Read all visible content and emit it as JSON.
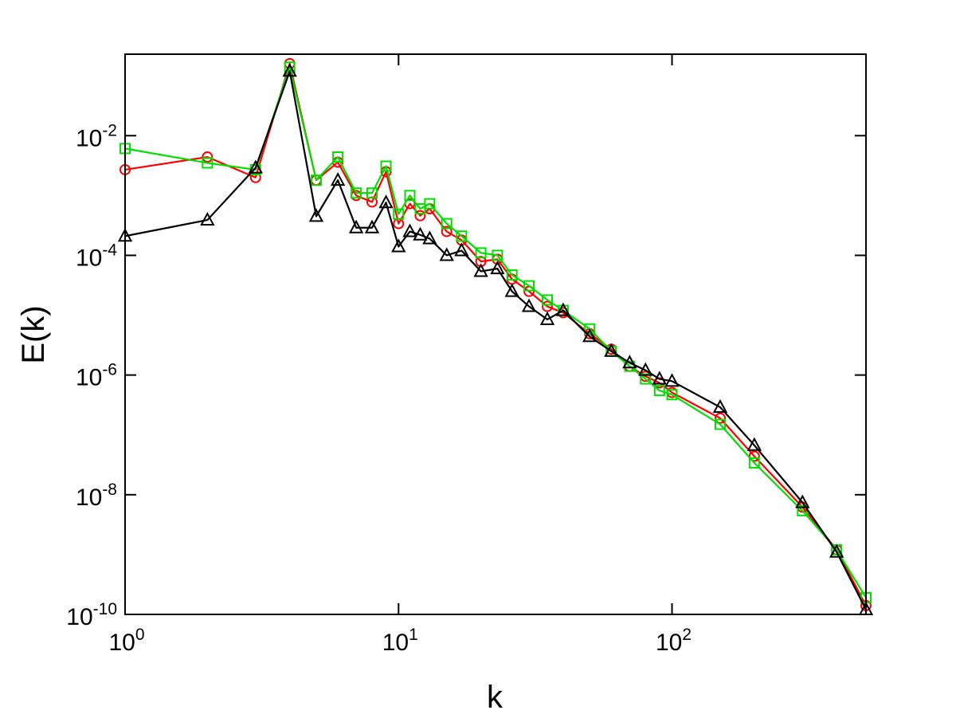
{
  "chart_data": {
    "type": "line",
    "xlabel": "k",
    "ylabel": "E(k)",
    "xscale": "log",
    "yscale": "log",
    "xlim": [
      1,
      512
    ],
    "ylim": [
      1e-10,
      0.23
    ],
    "xticks": [
      {
        "value": 1,
        "label": "100"
      },
      {
        "value": 10,
        "label": "101"
      },
      {
        "value": 100,
        "label": "102"
      }
    ],
    "yticks": [
      {
        "value": 1e-10,
        "label": "10-10"
      },
      {
        "value": 1e-08,
        "label": "10-8"
      },
      {
        "value": 1e-06,
        "label": "10-6"
      },
      {
        "value": 0.0001,
        "label": "10-4"
      },
      {
        "value": 0.01,
        "label": "10-2"
      }
    ],
    "x": [
      1,
      2,
      3,
      4,
      5,
      6,
      7,
      8,
      9,
      10,
      11,
      12,
      13,
      15,
      17,
      20,
      23,
      26,
      30,
      35,
      40,
      50,
      60,
      70,
      80,
      90,
      100,
      150,
      200,
      300,
      400,
      512
    ],
    "series": [
      {
        "color": "#ff0000",
        "marker": "circle",
        "values": [
          0.0027,
          0.0044,
          0.002,
          0.16,
          0.0018,
          0.0036,
          0.001,
          0.00078,
          0.0025,
          0.00034,
          0.00073,
          0.00046,
          0.0006,
          0.00025,
          0.00018,
          7.9e-05,
          8.6e-05,
          4e-05,
          2.5e-05,
          1.4e-05,
          1.1e-05,
          4.9e-06,
          2.7e-06,
          1.4e-06,
          9.5e-07,
          7.4e-07,
          5.1e-07,
          1.9e-07,
          4.4e-08,
          6.2e-09,
          1.2e-09,
          1.4e-10
        ]
      },
      {
        "color": "#00e000",
        "marker": "square",
        "values": [
          0.0061,
          0.0035,
          0.0027,
          0.14,
          0.0018,
          0.0044,
          0.0011,
          0.0011,
          0.0031,
          0.00049,
          0.001,
          0.0006,
          0.00073,
          0.00034,
          0.00021,
          0.00011,
          0.0001,
          4.7e-05,
          3.1e-05,
          1.8e-05,
          1.2e-05,
          5.9e-06,
          2.5e-06,
          1.4e-06,
          8.6e-07,
          5.5e-07,
          4.7e-07,
          1.5e-07,
          3.4e-08,
          5.4e-09,
          1.2e-09,
          1.9e-10
        ]
      },
      {
        "color": "#000000",
        "marker": "triangle",
        "values": [
          0.00021,
          0.00039,
          0.0029,
          0.12,
          0.00045,
          0.0018,
          0.00029,
          0.00029,
          0.00076,
          0.00014,
          0.00025,
          0.00022,
          0.00019,
          0.0001,
          0.00012,
          5.4e-05,
          6e-05,
          2.5e-05,
          1.4e-05,
          8.5e-06,
          1.2e-05,
          4.4e-06,
          2.5e-06,
          1.6e-06,
          1.2e-06,
          8.6e-07,
          7.9e-07,
          2.9e-07,
          6.7e-08,
          7.4e-09,
          1.1e-09,
          1.2e-10
        ]
      }
    ]
  }
}
